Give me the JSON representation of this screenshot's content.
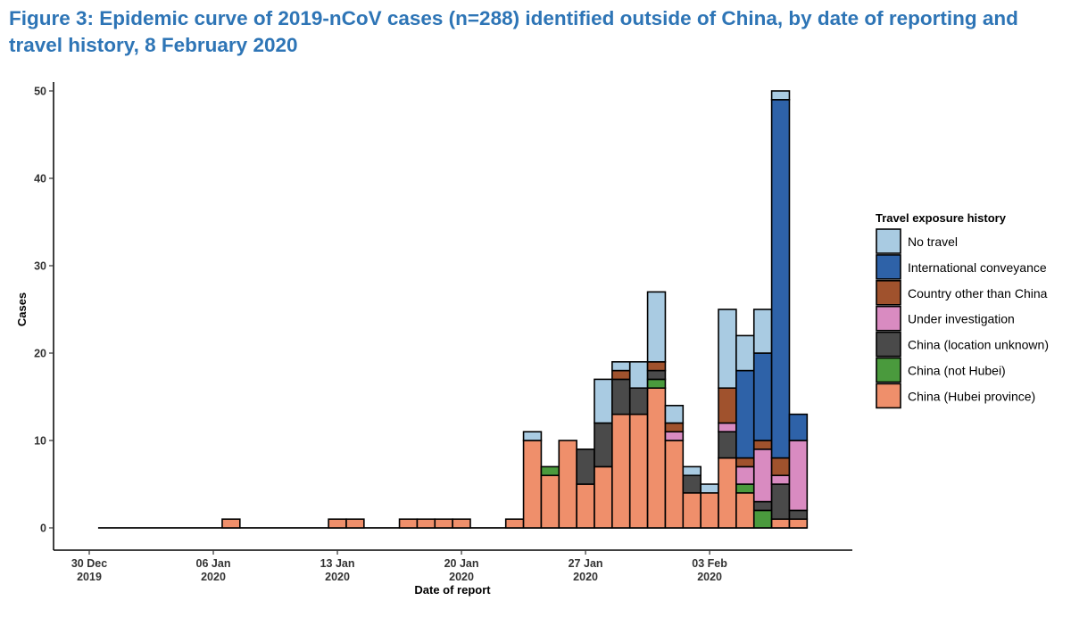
{
  "figure": {
    "title": "Figure 3: Epidemic curve of 2019-nCoV cases (n=288) identified outside of China, by date of reporting and travel history, 8 February 2020"
  },
  "chart_data": {
    "type": "bar",
    "stacked": true,
    "xlabel": "Date of report",
    "ylabel": "Cases",
    "ylim": [
      0,
      50
    ],
    "yticks": [
      0,
      10,
      20,
      30,
      40,
      50
    ],
    "xticks": [
      {
        "day": 0,
        "line1": "30 Dec",
        "line2": "2019"
      },
      {
        "day": 7,
        "line1": "06 Jan",
        "line2": "2020"
      },
      {
        "day": 14,
        "line1": "13 Jan",
        "line2": "2020"
      },
      {
        "day": 21,
        "line1": "20 Jan",
        "line2": "2020"
      },
      {
        "day": 28,
        "line1": "27 Jan",
        "line2": "2020"
      },
      {
        "day": 35,
        "line1": "03 Feb",
        "line2": "2020"
      }
    ],
    "date_range_days": [
      0,
      40
    ],
    "legend": {
      "title": "Travel exposure history",
      "position": "right"
    },
    "series": [
      {
        "name": "China (Hubei province)",
        "color": "#ef8f6b",
        "values": [
          0,
          0,
          0,
          0,
          0,
          0,
          0,
          0,
          1,
          0,
          0,
          0,
          0,
          0,
          1,
          1,
          0,
          0,
          1,
          1,
          1,
          1,
          0,
          0,
          1,
          10,
          6,
          10,
          5,
          7,
          13,
          13,
          16,
          10,
          4,
          4,
          8,
          4,
          0,
          1,
          1
        ]
      },
      {
        "name": "China (not Hubei)",
        "color": "#4a9a3d",
        "values": [
          0,
          0,
          0,
          0,
          0,
          0,
          0,
          0,
          0,
          0,
          0,
          0,
          0,
          0,
          0,
          0,
          0,
          0,
          0,
          0,
          0,
          0,
          0,
          0,
          0,
          0,
          1,
          0,
          0,
          0,
          0,
          0,
          1,
          0,
          0,
          0,
          0,
          1,
          2,
          0,
          0
        ]
      },
      {
        "name": "China (location unknown)",
        "color": "#4a4a4a",
        "values": [
          0,
          0,
          0,
          0,
          0,
          0,
          0,
          0,
          0,
          0,
          0,
          0,
          0,
          0,
          0,
          0,
          0,
          0,
          0,
          0,
          0,
          0,
          0,
          0,
          0,
          0,
          0,
          0,
          4,
          5,
          4,
          3,
          1,
          0,
          2,
          0,
          3,
          0,
          1,
          4,
          1
        ]
      },
      {
        "name": "Under investigation",
        "color": "#d98bc1",
        "values": [
          0,
          0,
          0,
          0,
          0,
          0,
          0,
          0,
          0,
          0,
          0,
          0,
          0,
          0,
          0,
          0,
          0,
          0,
          0,
          0,
          0,
          0,
          0,
          0,
          0,
          0,
          0,
          0,
          0,
          0,
          0,
          0,
          0,
          1,
          0,
          0,
          1,
          2,
          6,
          1,
          8
        ]
      },
      {
        "name": "Country other than China",
        "color": "#a0522d",
        "values": [
          0,
          0,
          0,
          0,
          0,
          0,
          0,
          0,
          0,
          0,
          0,
          0,
          0,
          0,
          0,
          0,
          0,
          0,
          0,
          0,
          0,
          0,
          0,
          0,
          0,
          0,
          0,
          0,
          0,
          0,
          1,
          0,
          1,
          1,
          0,
          0,
          4,
          1,
          1,
          2,
          0
        ]
      },
      {
        "name": "International conveyance",
        "color": "#2e62a8",
        "values": [
          0,
          0,
          0,
          0,
          0,
          0,
          0,
          0,
          0,
          0,
          0,
          0,
          0,
          0,
          0,
          0,
          0,
          0,
          0,
          0,
          0,
          0,
          0,
          0,
          0,
          0,
          0,
          0,
          0,
          0,
          0,
          0,
          0,
          0,
          0,
          0,
          0,
          10,
          10,
          41,
          3
        ]
      },
      {
        "name": "No travel",
        "color": "#a9cbe2",
        "values": [
          0,
          0,
          0,
          0,
          0,
          0,
          0,
          0,
          0,
          0,
          0,
          0,
          0,
          0,
          0,
          0,
          0,
          0,
          0,
          0,
          0,
          0,
          0,
          0,
          0,
          1,
          0,
          0,
          0,
          5,
          1,
          3,
          8,
          2,
          1,
          1,
          9,
          4,
          5,
          1,
          0
        ]
      }
    ],
    "legend_order": [
      "No travel",
      "International conveyance",
      "Country other than China",
      "Under investigation",
      "China (location unknown)",
      "China (not Hubei)",
      "China (Hubei province)"
    ]
  }
}
